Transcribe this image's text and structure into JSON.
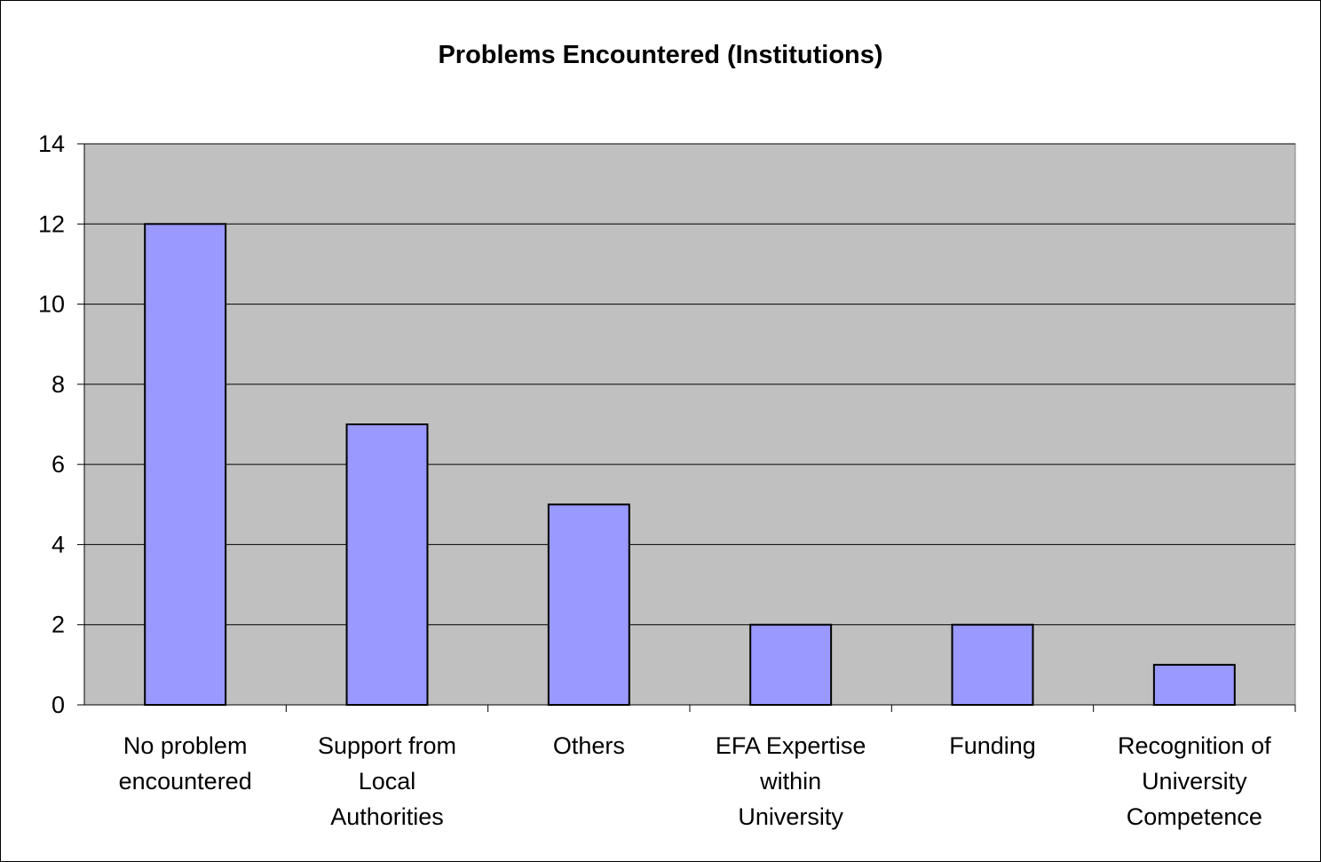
{
  "chart_data": {
    "type": "bar",
    "title": "Problems Encountered (Institutions)",
    "xlabel": "",
    "ylabel": "",
    "categories": [
      [
        "No problem",
        "encountered"
      ],
      [
        "Support from",
        "Local",
        "Authorities"
      ],
      [
        "Others"
      ],
      [
        "EFA Expertise",
        "within",
        "University"
      ],
      [
        "Funding"
      ],
      [
        "Recognition of",
        "University",
        "Competence"
      ]
    ],
    "values": [
      12,
      7,
      5,
      2,
      2,
      1
    ],
    "ylim": [
      0,
      14
    ],
    "yticks": [
      0,
      2,
      4,
      6,
      8,
      10,
      12,
      14
    ],
    "grid": true,
    "legend": "none",
    "colors": {
      "plot_background": "#c0c0c0",
      "bar_fill": "#9999ff",
      "bar_stroke": "#000000",
      "gridline": "#000000"
    }
  }
}
